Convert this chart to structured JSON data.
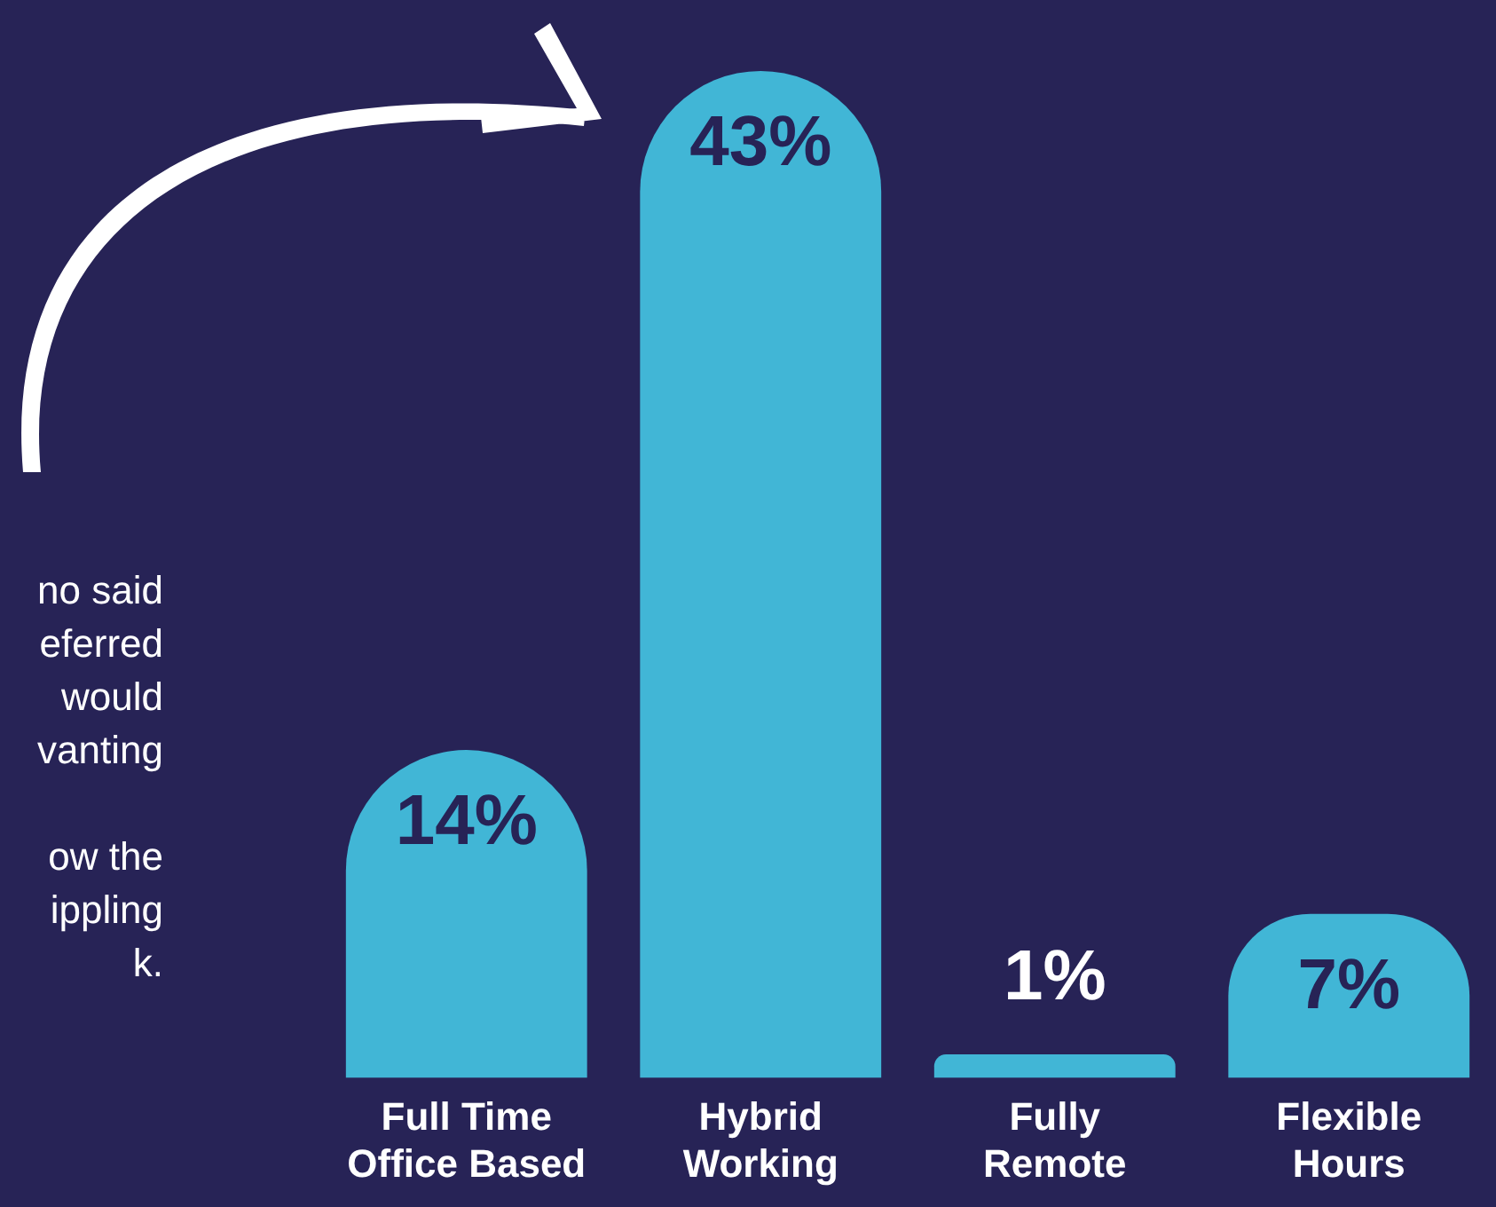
{
  "chart_data": {
    "type": "bar",
    "categories": [
      "Full Time Office Based",
      "Hybrid Working",
      "Fully Remote",
      "Flexible Hours"
    ],
    "values": [
      14,
      43,
      1,
      7
    ],
    "value_labels": [
      "14%",
      "43%",
      "1%",
      "7%"
    ],
    "color": "#41b6d6",
    "legend": false,
    "grid": false,
    "tick_labels": "x",
    "annotations": [
      "no said",
      "eferred",
      "would",
      "vanting",
      "ow the",
      "ippling",
      "k."
    ]
  }
}
